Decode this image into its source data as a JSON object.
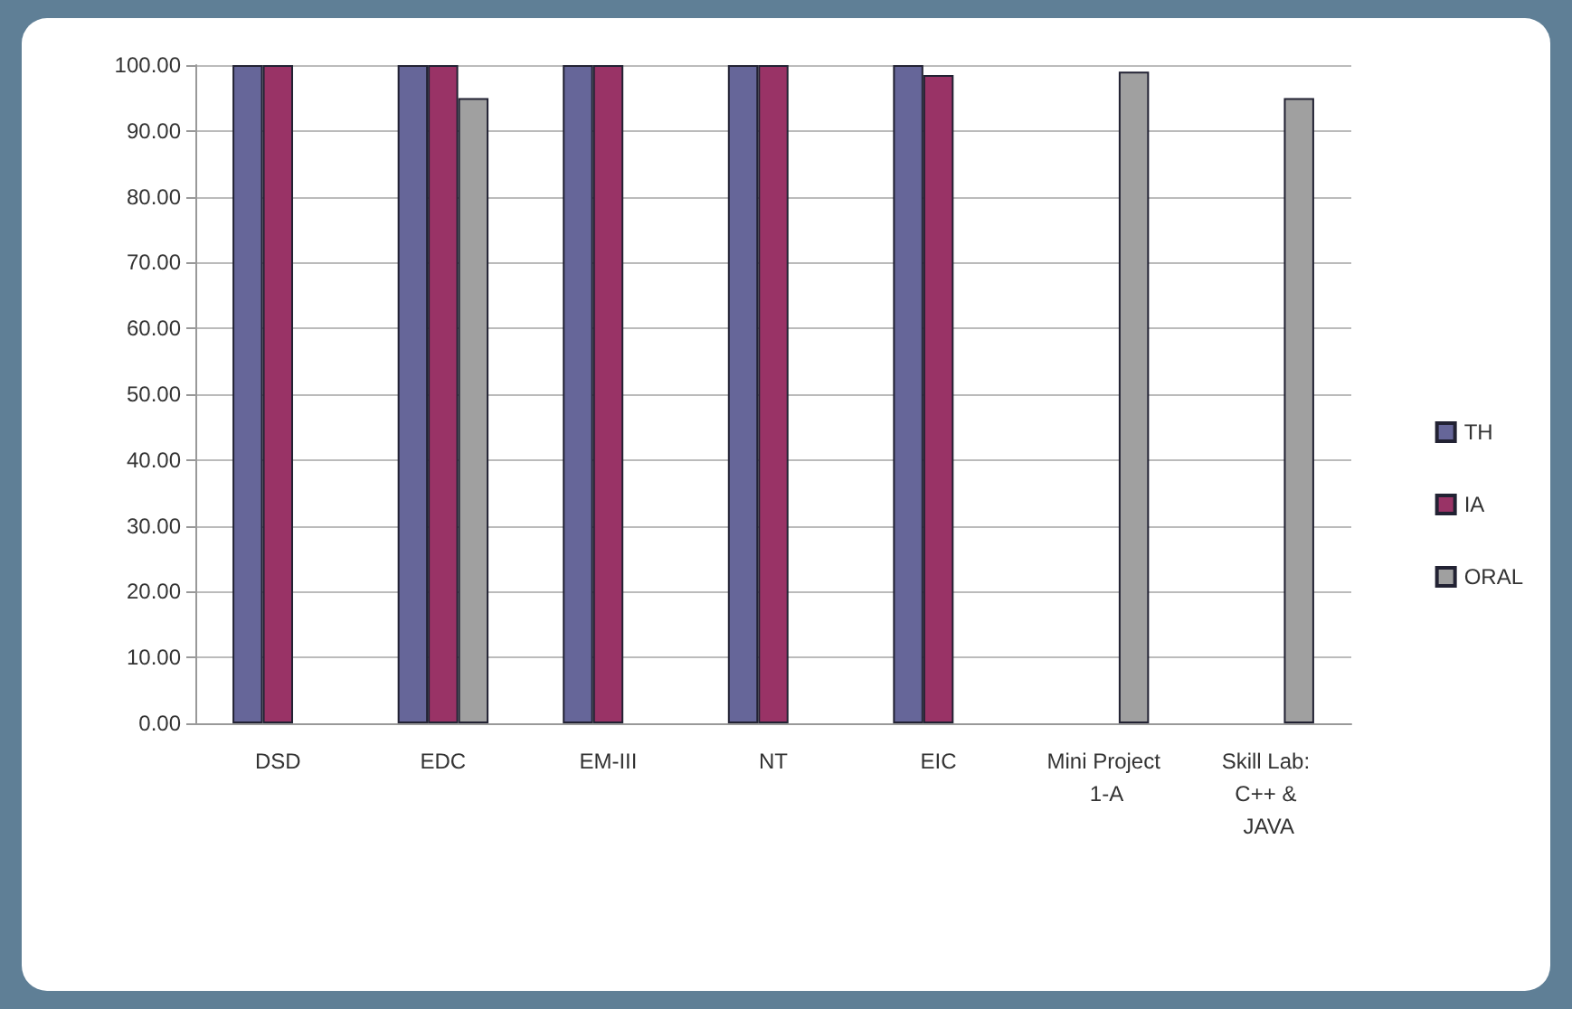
{
  "chart_data": {
    "type": "bar",
    "categories": [
      "DSD",
      "EDC",
      "EM-III",
      "NT",
      "EIC",
      "Mini Project 1-A",
      "Skill Lab: C++ & JAVA"
    ],
    "series": [
      {
        "name": "TH",
        "color": "#666699",
        "values": [
          100,
          100,
          100,
          100,
          100,
          null,
          null
        ]
      },
      {
        "name": "IA",
        "color": "#993366",
        "values": [
          100,
          100,
          100,
          100,
          98.5,
          null,
          null
        ]
      },
      {
        "name": "ORAL",
        "color": "#a0a0a0",
        "values": [
          null,
          95,
          null,
          null,
          null,
          99,
          95
        ]
      }
    ],
    "ylim": [
      0,
      100
    ],
    "yticks": [
      {
        "value": 0,
        "label": "0.00"
      },
      {
        "value": 10,
        "label": "10.00"
      },
      {
        "value": 20,
        "label": "20.00"
      },
      {
        "value": 30,
        "label": "30.00"
      },
      {
        "value": 40,
        "label": "40.00"
      },
      {
        "value": 50,
        "label": "50.00"
      },
      {
        "value": 60,
        "label": "60.00"
      },
      {
        "value": 70,
        "label": "70.00"
      },
      {
        "value": 80,
        "label": "80.00"
      },
      {
        "value": 90,
        "label": "90.00"
      },
      {
        "value": 100,
        "label": "100.00"
      }
    ],
    "grid": "y",
    "legend": "right"
  }
}
